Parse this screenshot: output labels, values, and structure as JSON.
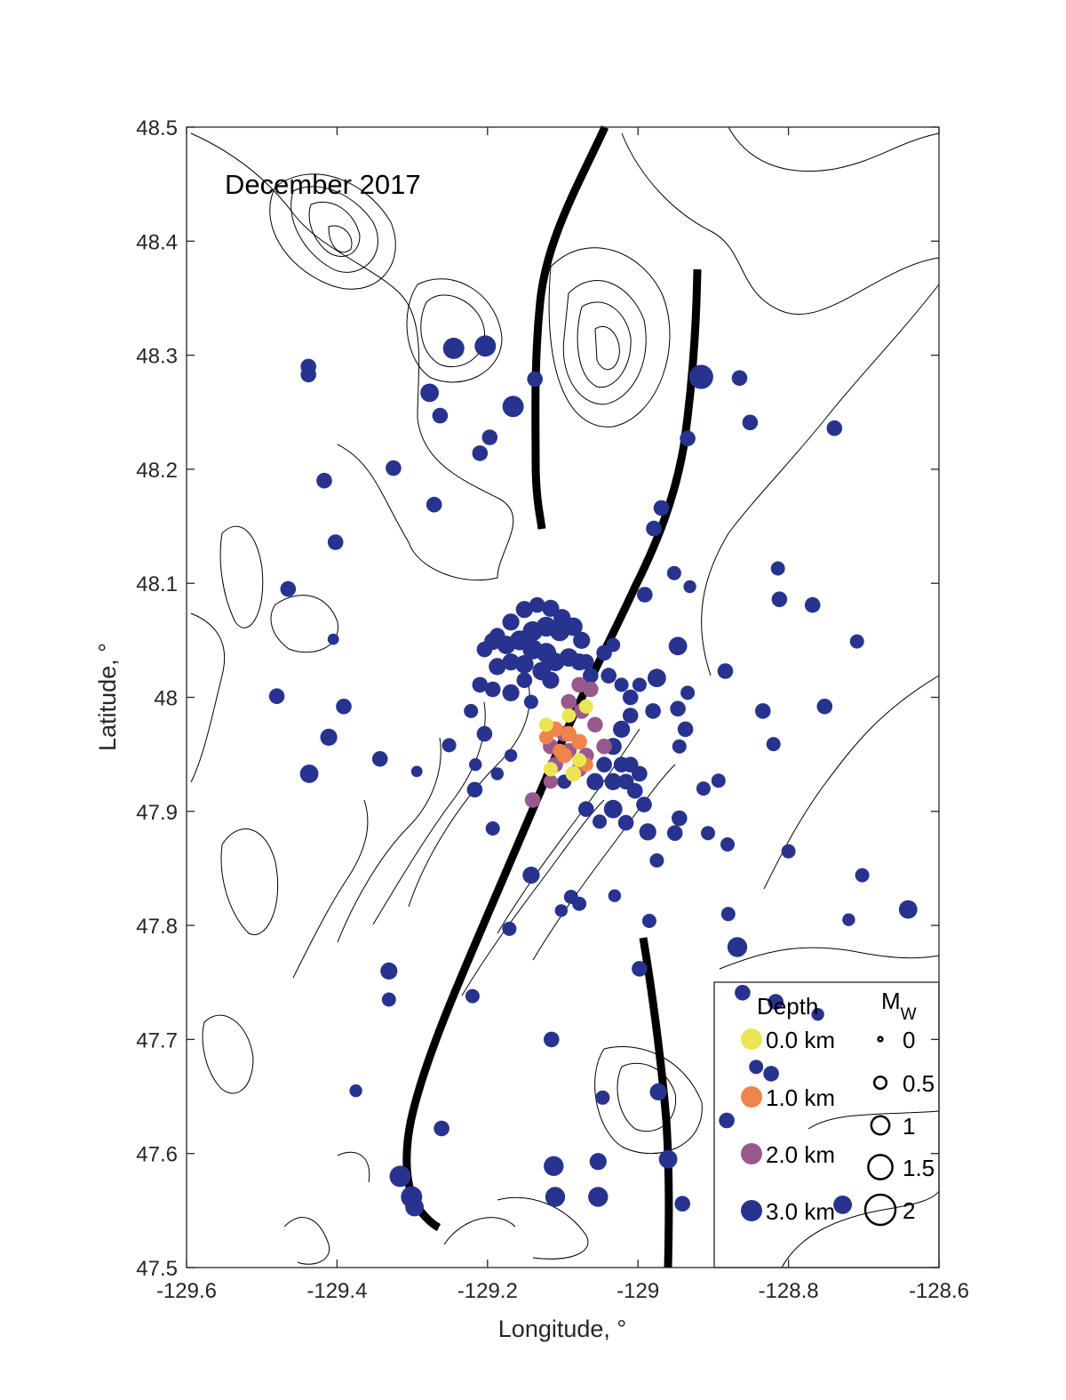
{
  "chart_data": {
    "type": "scatter",
    "title": "December 2017",
    "xlabel": "Longitude, °",
    "ylabel": "Latitude, °",
    "xlim": [
      -129.6,
      -128.6
    ],
    "ylim": [
      47.5,
      48.5
    ],
    "xticks": [
      "-129.6",
      "-129.4",
      "-129.2",
      "-129",
      "-128.8",
      "-128.6"
    ],
    "xtick_values": [
      -129.6,
      -129.4,
      -129.2,
      -129.0,
      -128.8,
      -128.6
    ],
    "yticks": [
      "47.5",
      "47.6",
      "47.7",
      "47.8",
      "47.9",
      "48",
      "48.1",
      "48.2",
      "48.3",
      "48.4",
      "48.5"
    ],
    "ytick_values": [
      47.5,
      47.6,
      47.7,
      47.8,
      47.9,
      48.0,
      48.1,
      48.2,
      48.3,
      48.4,
      48.5
    ],
    "legend": {
      "placement": "bottom-right",
      "depth_title": "Depth",
      "mw_title": "M",
      "mw_sub": "W",
      "depth_entries": [
        {
          "label": "0.0 km",
          "depth": 0,
          "color": "#ece553"
        },
        {
          "label": "1.0 km",
          "depth": 1,
          "color": "#f0854c"
        },
        {
          "label": "2.0 km",
          "depth": 2,
          "color": "#985a8e"
        },
        {
          "label": "3.0 km",
          "depth": 3,
          "color": "#27338f"
        }
      ],
      "mw_entries": [
        {
          "label": "0",
          "mw": 0
        },
        {
          "label": "0.5",
          "mw": 0.5
        },
        {
          "label": "1",
          "mw": 1
        },
        {
          "label": "1.5",
          "mw": 1.5
        },
        {
          "label": "2",
          "mw": 2
        }
      ]
    },
    "point_format": [
      "lon",
      "lat",
      "depth_km",
      "mw"
    ],
    "points": [
      [
        -129.245,
        48.306,
        3,
        1.0
      ],
      [
        -129.203,
        48.308,
        3,
        1.0
      ],
      [
        -129.438,
        48.29,
        3,
        0.6
      ],
      [
        -129.438,
        48.283,
        3,
        0.6
      ],
      [
        -129.277,
        48.267,
        3,
        0.8
      ],
      [
        -129.263,
        48.247,
        3,
        0.6
      ],
      [
        -129.166,
        48.255,
        3,
        1.0
      ],
      [
        -129.137,
        48.279,
        3,
        0.6
      ],
      [
        -129.197,
        48.228,
        3,
        0.6
      ],
      [
        -129.21,
        48.214,
        3,
        0.6
      ],
      [
        -129.325,
        48.201,
        3,
        0.6
      ],
      [
        -129.417,
        48.19,
        3,
        0.6
      ],
      [
        -129.271,
        48.169,
        3,
        0.6
      ],
      [
        -129.402,
        48.136,
        3,
        0.6
      ],
      [
        -129.465,
        48.095,
        3,
        0.6
      ],
      [
        -129.405,
        48.051,
        3,
        0.3
      ],
      [
        -129.48,
        48.001,
        3,
        0.6
      ],
      [
        -129.391,
        47.992,
        3,
        0.6
      ],
      [
        -129.411,
        47.965,
        3,
        0.7
      ],
      [
        -129.437,
        47.933,
        3,
        0.8
      ],
      [
        -129.343,
        47.946,
        3,
        0.6
      ],
      [
        -129.294,
        47.935,
        3,
        0.3
      ],
      [
        -129.251,
        47.958,
        3,
        0.5
      ],
      [
        -129.217,
        47.919,
        3,
        0.6
      ],
      [
        -129.193,
        47.885,
        3,
        0.5
      ],
      [
        -129.204,
        47.968,
        3,
        0.6
      ],
      [
        -128.916,
        48.281,
        3,
        1.2
      ],
      [
        -128.865,
        48.28,
        3,
        0.6
      ],
      [
        -128.851,
        48.241,
        3,
        0.6
      ],
      [
        -128.934,
        48.227,
        3,
        0.6
      ],
      [
        -128.739,
        48.236,
        3,
        0.6
      ],
      [
        -128.969,
        48.166,
        3,
        0.6
      ],
      [
        -128.979,
        48.148,
        3,
        0.6
      ],
      [
        -128.952,
        48.109,
        3,
        0.5
      ],
      [
        -128.931,
        48.097,
        3,
        0.4
      ],
      [
        -128.991,
        48.09,
        3,
        0.6
      ],
      [
        -128.814,
        48.113,
        3,
        0.5
      ],
      [
        -128.812,
        48.086,
        3,
        0.6
      ],
      [
        -128.768,
        48.081,
        3,
        0.6
      ],
      [
        -128.709,
        48.049,
        3,
        0.5
      ],
      [
        -128.947,
        48.045,
        3,
        0.8
      ],
      [
        -128.884,
        48.023,
        3,
        0.6
      ],
      [
        -128.975,
        48.017,
        3,
        0.8
      ],
      [
        -128.934,
        48.004,
        3,
        0.5
      ],
      [
        -128.947,
        47.99,
        3,
        0.6
      ],
      [
        -128.834,
        47.988,
        3,
        0.6
      ],
      [
        -128.752,
        47.992,
        3,
        0.6
      ],
      [
        -128.937,
        47.972,
        3,
        0.6
      ],
      [
        -128.945,
        47.957,
        3,
        0.5
      ],
      [
        -128.82,
        47.959,
        3,
        0.5
      ],
      [
        -128.893,
        47.927,
        3,
        0.5
      ],
      [
        -128.913,
        47.92,
        3,
        0.5
      ],
      [
        -128.945,
        47.894,
        3,
        0.6
      ],
      [
        -128.951,
        47.881,
        3,
        0.6
      ],
      [
        -128.907,
        47.881,
        3,
        0.5
      ],
      [
        -128.881,
        47.871,
        3,
        0.5
      ],
      [
        -128.8,
        47.865,
        3,
        0.5
      ],
      [
        -128.975,
        47.857,
        3,
        0.5
      ],
      [
        -128.702,
        47.844,
        3,
        0.5
      ],
      [
        -128.641,
        47.814,
        3,
        0.8
      ],
      [
        -128.72,
        47.805,
        3,
        0.4
      ],
      [
        -128.88,
        47.81,
        3,
        0.5
      ],
      [
        -128.868,
        47.781,
        3,
        0.9
      ],
      [
        -128.985,
        47.804,
        3,
        0.5
      ],
      [
        -128.998,
        47.762,
        3,
        0.6
      ],
      [
        -128.987,
        47.882,
        3,
        0.7
      ],
      [
        -129.016,
        47.89,
        3,
        0.6
      ],
      [
        -129.033,
        47.902,
        3,
        0.8
      ],
      [
        -129.171,
        47.797,
        3,
        0.5
      ],
      [
        -129.142,
        47.844,
        3,
        0.7
      ],
      [
        -129.102,
        47.813,
        3,
        0.4
      ],
      [
        -129.089,
        47.825,
        3,
        0.5
      ],
      [
        -129.078,
        47.819,
        3,
        0.5
      ],
      [
        -129.031,
        47.826,
        3,
        0.4
      ],
      [
        -129.22,
        47.738,
        3,
        0.5
      ],
      [
        -129.331,
        47.76,
        3,
        0.7
      ],
      [
        -129.331,
        47.735,
        3,
        0.5
      ],
      [
        -129.115,
        47.7,
        3,
        0.6
      ],
      [
        -129.375,
        47.655,
        3,
        0.4
      ],
      [
        -129.261,
        47.622,
        3,
        0.6
      ],
      [
        -129.316,
        47.58,
        3,
        1.0
      ],
      [
        -129.301,
        47.562,
        3,
        1.0
      ],
      [
        -129.297,
        47.553,
        3,
        0.8
      ],
      [
        -129.112,
        47.589,
        3,
        0.9
      ],
      [
        -129.11,
        47.562,
        3,
        0.9
      ],
      [
        -129.053,
        47.593,
        3,
        0.7
      ],
      [
        -129.053,
        47.562,
        3,
        0.9
      ],
      [
        -129.047,
        47.649,
        3,
        0.5
      ],
      [
        -128.973,
        47.654,
        3,
        0.7
      ],
      [
        -128.96,
        47.595,
        3,
        0.8
      ],
      [
        -128.941,
        47.556,
        3,
        0.6
      ],
      [
        -128.882,
        47.629,
        3,
        0.6
      ],
      [
        -128.861,
        47.741,
        3,
        0.6
      ],
      [
        -128.817,
        47.733,
        3,
        0.6
      ],
      [
        -128.843,
        47.676,
        3,
        0.5
      ],
      [
        -128.823,
        47.67,
        3,
        0.6
      ],
      [
        -128.761,
        47.722,
        3,
        0.4
      ],
      [
        -128.728,
        47.555,
        3,
        0.8
      ],
      [
        -129.151,
        48.077,
        3,
        0.7
      ],
      [
        -129.134,
        48.081,
        3,
        0.6
      ],
      [
        -129.116,
        48.078,
        3,
        0.7
      ],
      [
        -129.101,
        48.07,
        3,
        0.7
      ],
      [
        -129.169,
        48.066,
        3,
        0.7
      ],
      [
        -129.187,
        48.054,
        3,
        0.6
      ],
      [
        -129.204,
        48.042,
        3,
        0.6
      ],
      [
        -129.193,
        48.049,
        3,
        0.7
      ],
      [
        -129.175,
        48.046,
        3,
        0.8
      ],
      [
        -129.157,
        48.05,
        3,
        0.9
      ],
      [
        -129.14,
        48.058,
        3,
        0.9
      ],
      [
        -129.122,
        48.062,
        3,
        0.9
      ],
      [
        -129.104,
        48.058,
        3,
        0.9
      ],
      [
        -129.086,
        48.062,
        3,
        0.8
      ],
      [
        -129.075,
        48.05,
        3,
        0.7
      ],
      [
        -129.14,
        48.042,
        3,
        0.9
      ],
      [
        -129.122,
        48.039,
        3,
        0.9
      ],
      [
        -129.11,
        48.031,
        3,
        0.8
      ],
      [
        -129.092,
        48.035,
        3,
        0.8
      ],
      [
        -129.078,
        48.031,
        3,
        0.7
      ],
      [
        -129.128,
        48.023,
        3,
        0.8
      ],
      [
        -129.151,
        48.029,
        3,
        0.8
      ],
      [
        -129.169,
        48.031,
        3,
        0.7
      ],
      [
        -129.187,
        48.027,
        3,
        0.7
      ],
      [
        -129.21,
        48.011,
        3,
        0.6
      ],
      [
        -129.193,
        48.007,
        3,
        0.6
      ],
      [
        -129.169,
        48.004,
        3,
        0.7
      ],
      [
        -129.151,
        48.015,
        3,
        0.6
      ],
      [
        -129.142,
        47.996,
        3,
        0.5
      ],
      [
        -129.116,
        48.015,
        3,
        0.7
      ],
      [
        -129.069,
        48.031,
        3,
        0.6
      ],
      [
        -129.063,
        48.019,
        3,
        0.6
      ],
      [
        -129.045,
        48.039,
        3,
        0.6
      ],
      [
        -129.033,
        48.046,
        3,
        0.5
      ],
      [
        -129.039,
        48.019,
        3,
        0.6
      ],
      [
        -129.022,
        48.011,
        3,
        0.5
      ],
      [
        -129.01,
        48.0,
        3,
        0.6
      ],
      [
        -128.998,
        48.011,
        3,
        0.5
      ],
      [
        -128.98,
        47.988,
        3,
        0.6
      ],
      [
        -129.01,
        47.984,
        3,
        0.6
      ],
      [
        -129.022,
        47.972,
        3,
        0.7
      ],
      [
        -129.033,
        47.957,
        3,
        0.7
      ],
      [
        -129.022,
        47.941,
        3,
        0.6
      ],
      [
        -129.045,
        47.941,
        3,
        0.6
      ],
      [
        -129.057,
        47.926,
        3,
        0.7
      ],
      [
        -129.033,
        47.926,
        3,
        0.7
      ],
      [
        -129.016,
        47.926,
        3,
        0.6
      ],
      [
        -129.004,
        47.918,
        3,
        0.6
      ],
      [
        -128.992,
        47.906,
        3,
        0.6
      ],
      [
        -129.01,
        47.941,
        3,
        0.6
      ],
      [
        -128.998,
        47.933,
        3,
        0.6
      ],
      [
        -129.051,
        47.891,
        3,
        0.5
      ],
      [
        -129.069,
        47.902,
        3,
        0.6
      ],
      [
        -129.098,
        47.926,
        3,
        0.5
      ],
      [
        -129.169,
        47.949,
        3,
        0.4
      ],
      [
        -129.187,
        47.933,
        3,
        0.4
      ],
      [
        -129.216,
        47.941,
        3,
        0.4
      ],
      [
        -129.222,
        47.988,
        3,
        0.5
      ],
      [
        -129.078,
        48.011,
        2,
        0.6
      ],
      [
        -129.063,
        48.007,
        2,
        0.6
      ],
      [
        -129.092,
        47.996,
        2,
        0.6
      ],
      [
        -129.075,
        47.988,
        2,
        0.6
      ],
      [
        -129.057,
        47.976,
        2,
        0.6
      ],
      [
        -129.116,
        47.957,
        2,
        0.6
      ],
      [
        -129.092,
        47.953,
        2,
        0.6
      ],
      [
        -129.069,
        47.949,
        2,
        0.6
      ],
      [
        -129.11,
        47.941,
        2,
        0.6
      ],
      [
        -129.078,
        47.937,
        2,
        0.6
      ],
      [
        -129.116,
        47.926,
        2,
        0.5
      ],
      [
        -129.14,
        47.91,
        2,
        0.6
      ],
      [
        -129.098,
        47.968,
        2,
        0.6
      ],
      [
        -129.045,
        47.957,
        2,
        0.6
      ],
      [
        -129.11,
        47.972,
        1,
        0.6
      ],
      [
        -129.092,
        47.968,
        1,
        0.6
      ],
      [
        -129.078,
        47.961,
        1,
        0.6
      ],
      [
        -129.122,
        47.965,
        1,
        0.5
      ],
      [
        -129.098,
        47.949,
        1,
        0.6
      ],
      [
        -129.069,
        47.941,
        1,
        0.5
      ],
      [
        -129.104,
        47.953,
        1,
        0.5
      ],
      [
        -129.122,
        47.976,
        0,
        0.5
      ],
      [
        -129.092,
        47.984,
        0,
        0.5
      ],
      [
        -129.078,
        47.945,
        0,
        0.5
      ],
      [
        -129.116,
        47.937,
        0,
        0.5
      ],
      [
        -129.086,
        47.933,
        0,
        0.6
      ],
      [
        -129.069,
        47.992,
        0,
        0.5
      ]
    ]
  }
}
